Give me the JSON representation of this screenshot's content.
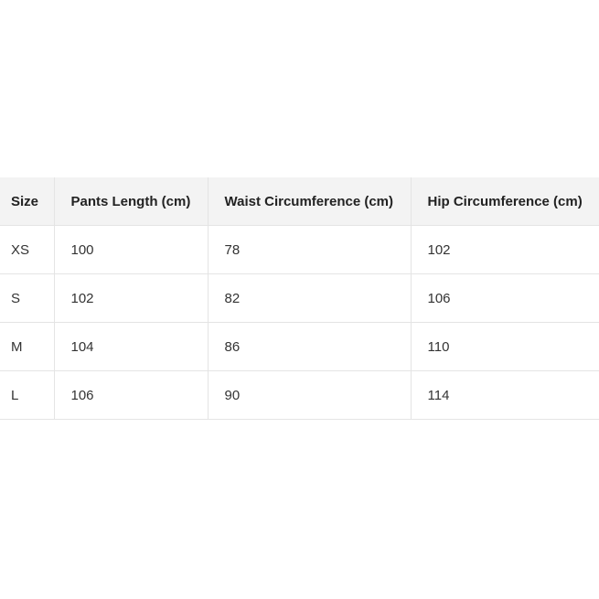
{
  "table": {
    "headers": [
      "Size",
      "Pants Length (cm)",
      "Waist Circumference (cm)",
      "Hip Circumference (cm)"
    ],
    "rows": [
      [
        "XS",
        "100",
        "78",
        "102"
      ],
      [
        "S",
        "102",
        "82",
        "106"
      ],
      [
        "M",
        "104",
        "86",
        "110"
      ],
      [
        "L",
        "106",
        "90",
        "114"
      ]
    ]
  }
}
